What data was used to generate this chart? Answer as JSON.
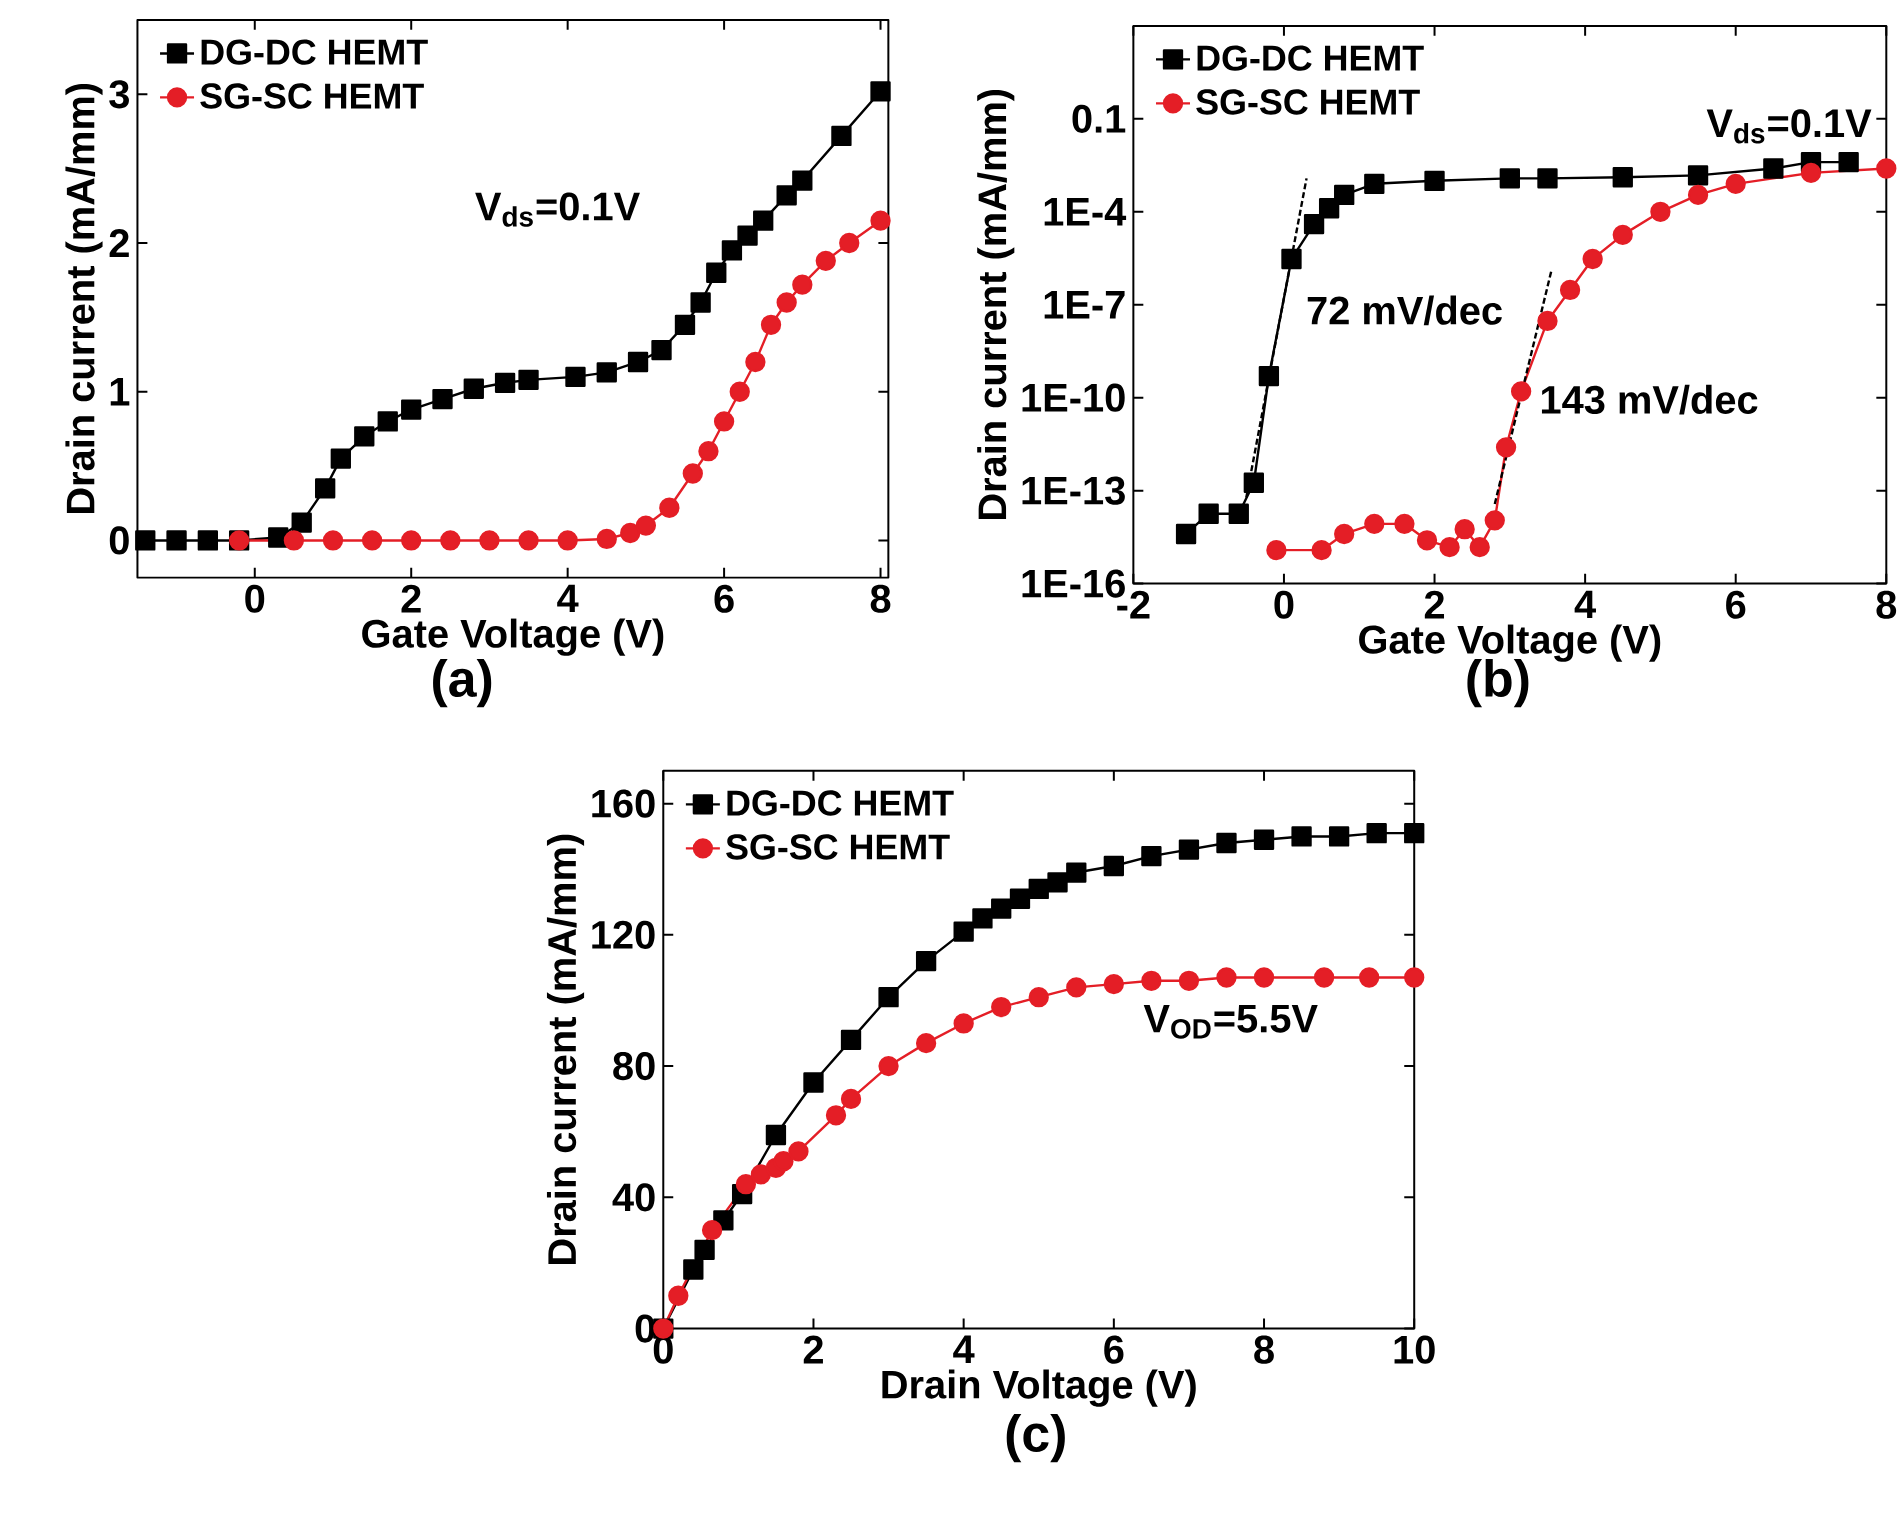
{
  "chart_data": [
    {
      "type": "line",
      "title": "(a)",
      "xlabel": "Gate Voltage (V)",
      "ylabel": "Drain current (mA/mm)",
      "xlim": [
        -1.5,
        8.1
      ],
      "ylim": [
        -0.25,
        3.5
      ],
      "xticks": [
        0,
        2,
        4,
        6,
        8
      ],
      "yticks": [
        0,
        1,
        2,
        3
      ],
      "legend": "top left",
      "annotations": [
        "V$_{ds}$=0.1V"
      ],
      "series": [
        {
          "name": "DG-DC HEMT",
          "color": "#000000",
          "marker": "square",
          "x": [
            -1.4,
            -1.0,
            -0.6,
            -0.2,
            0.3,
            0.6,
            0.9,
            1.1,
            1.4,
            1.7,
            2.0,
            2.4,
            2.8,
            3.2,
            3.5,
            4.1,
            4.5,
            4.9,
            5.2,
            5.5,
            5.7,
            5.9,
            6.1,
            6.3,
            6.5,
            6.8,
            7.0,
            7.5,
            8.0
          ],
          "values": [
            0,
            0,
            0,
            0,
            0.02,
            0.12,
            0.35,
            0.55,
            0.7,
            0.8,
            0.88,
            0.95,
            1.02,
            1.06,
            1.08,
            1.1,
            1.13,
            1.2,
            1.28,
            1.45,
            1.6,
            1.8,
            1.95,
            2.05,
            2.15,
            2.32,
            2.42,
            2.72,
            3.02
          ]
        },
        {
          "name": "SG-SC HEMT",
          "color": "#e41e26",
          "marker": "circle",
          "x": [
            -0.2,
            0.5,
            1.0,
            1.5,
            2.0,
            2.5,
            3.0,
            3.5,
            4.0,
            4.5,
            4.8,
            5.0,
            5.3,
            5.6,
            5.8,
            6.0,
            6.2,
            6.4,
            6.6,
            6.8,
            7.0,
            7.3,
            7.6,
            8.0
          ],
          "values": [
            0,
            0,
            0,
            0,
            0,
            0,
            0,
            0,
            0,
            0.01,
            0.05,
            0.1,
            0.22,
            0.45,
            0.6,
            0.8,
            1.0,
            1.2,
            1.45,
            1.6,
            1.72,
            1.88,
            2.0,
            2.15
          ]
        }
      ]
    },
    {
      "type": "line",
      "title": "(b)",
      "xlabel": "Gate Voltage (V)",
      "ylabel": "Drain current (mA/mm)",
      "log": "y",
      "xlim": [
        -2,
        8
      ],
      "ylim": [
        1e-16,
        100
      ],
      "xticks": [
        -2,
        0,
        2,
        4,
        6,
        8
      ],
      "yticks": [
        {
          "value": 1e-16,
          "label": "1E-16"
        },
        {
          "value": 1e-13,
          "label": "1E-13"
        },
        {
          "value": 1e-10,
          "label": "1E-10"
        },
        {
          "value": 1e-07,
          "label": "1E-7"
        },
        {
          "value": 0.0001,
          "label": "1E-4"
        },
        0.1
      ],
      "legend": "top left",
      "annotations": [
        "V$_{ds}$=0.1V",
        "72 mV/dec",
        "143 mV/dec"
      ],
      "series": [
        {
          "name": "DG-DC HEMT",
          "color": "#000000",
          "marker": "square",
          "x": [
            -1.3,
            -1.0,
            -0.6,
            -0.4,
            -0.2,
            0.1,
            0.4,
            0.6,
            0.8,
            1.2,
            2.0,
            3.0,
            3.5,
            4.5,
            5.5,
            6.5,
            7.0,
            7.5
          ],
          "values": [
            4e-15,
            1.8e-14,
            1.8e-14,
            1.8e-13,
            5e-10,
            3e-06,
            4e-05,
            0.00013,
            0.00035,
            0.0008,
            0.001,
            0.0012,
            0.0012,
            0.0013,
            0.0015,
            0.0025,
            0.004,
            0.004
          ]
        },
        {
          "name": "SG-SC HEMT",
          "color": "#e41e26",
          "marker": "circle",
          "x": [
            -0.1,
            0.5,
            0.8,
            1.2,
            1.6,
            1.9,
            2.2,
            2.4,
            2.6,
            2.8,
            2.95,
            3.15,
            3.5,
            3.8,
            4.1,
            4.5,
            5.0,
            5.5,
            6.0,
            7.0,
            8.0
          ],
          "values": [
            1.2e-15,
            1.2e-15,
            4e-15,
            8.5e-15,
            8.5e-15,
            2.5e-15,
            1.5e-15,
            5.7e-15,
            1.5e-15,
            1.1e-14,
            2.5e-12,
            1.6e-10,
            3e-08,
            3e-07,
            3e-06,
            1.8e-05,
            0.0001,
            0.00035,
            0.0008,
            0.0018,
            0.0025
          ]
        },
        {
          "type": "line",
          "color": "#000000",
          "marker": "none",
          "line_style": "dashed",
          "x": [
            -0.5,
            0.3
          ],
          "values": [
            6e-14,
            0.0012
          ]
        },
        {
          "type": "line",
          "color": "#000000",
          "marker": "none",
          "line_style": "dashed",
          "x": [
            2.8,
            3.55
          ],
          "values": [
            3.7e-14,
            1.2e-06
          ]
        }
      ]
    },
    {
      "type": "line",
      "title": "(c)",
      "xlabel": "Drain Voltage (V)",
      "ylabel": "Drain current (mA/mm)",
      "xlim": [
        0,
        10
      ],
      "ylim": [
        0,
        170
      ],
      "xticks": [
        0,
        2,
        4,
        6,
        8,
        10
      ],
      "yticks": [
        0,
        40,
        80,
        120,
        160
      ],
      "legend": "top left",
      "annotations": [
        "V$_{OD}$=5.5V"
      ],
      "series": [
        {
          "name": "DG-DC HEMT",
          "color": "#000000",
          "marker": "square",
          "x": [
            0,
            0.2,
            0.4,
            0.55,
            0.7,
            0.8,
            1.05,
            1.5,
            2.0,
            2.5,
            3.0,
            3.5,
            4.0,
            4.25,
            4.5,
            4.75,
            5.0,
            5.25,
            5.5,
            6.0,
            6.5,
            7.0,
            7.5,
            8.0,
            8.5,
            9.0,
            9.5,
            10.0
          ],
          "values": [
            0,
            null,
            18,
            24,
            null,
            33,
            41,
            59,
            75,
            88,
            101,
            112,
            121,
            125,
            128,
            131,
            134,
            136,
            139,
            141,
            144,
            146,
            148,
            149,
            150,
            150,
            151,
            151
          ]
        },
        {
          "name": "SG-SC HEMT",
          "color": "#e41e26",
          "marker": "circle",
          "x": [
            0,
            0.2,
            0.65,
            1.1,
            1.3,
            1.5,
            1.6,
            1.8,
            2.3,
            2.5,
            3.0,
            3.5,
            4.0,
            4.5,
            5.0,
            5.5,
            6.0,
            6.5,
            7.0,
            7.5,
            8.0,
            8.8,
            9.4,
            10.0
          ],
          "values": [
            0,
            10,
            30,
            44,
            47,
            49,
            51,
            54,
            65,
            70,
            80,
            87,
            93,
            98,
            101,
            104,
            105,
            106,
            106,
            107,
            107,
            107,
            107,
            107
          ]
        }
      ]
    }
  ]
}
